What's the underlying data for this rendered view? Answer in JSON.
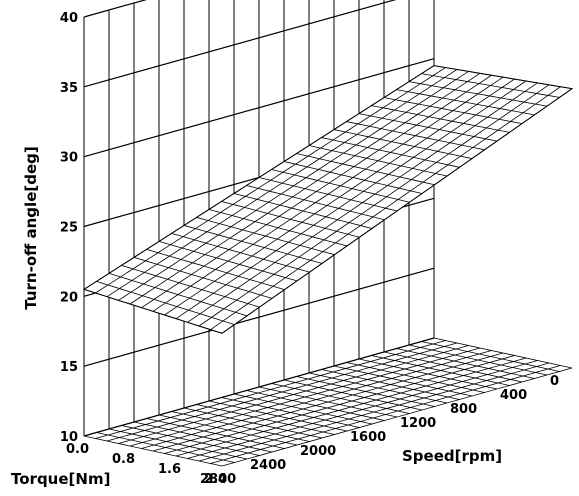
{
  "chart_data": {
    "type": "surface",
    "title": "",
    "zlabel": "Turn-off angle[deg]",
    "xlabel": "Torque[Nm]",
    "ylabel": "Speed[rpm]",
    "zlim": [
      10,
      40
    ],
    "z_ticks": [
      "10",
      "15",
      "20",
      "25",
      "30",
      "35",
      "40"
    ],
    "torque_ticks": [
      "0.0",
      "0.8",
      "1.6",
      "2.4"
    ],
    "speed_ticks": [
      "0",
      "400",
      "800",
      "1200",
      "1600",
      "2000",
      "2400",
      "2800"
    ],
    "torque_range": [
      0,
      2.4
    ],
    "speed_range": [
      0,
      2800
    ],
    "surface_corners": [
      {
        "torque": 0.0,
        "speed": 2800,
        "angle": 20.5
      },
      {
        "torque": 2.4,
        "speed": 2800,
        "angle": 19.5
      },
      {
        "torque": 0.0,
        "speed": 0,
        "angle": 29.5
      },
      {
        "torque": 2.4,
        "speed": 0,
        "angle": 30.0
      }
    ],
    "grid": true
  }
}
